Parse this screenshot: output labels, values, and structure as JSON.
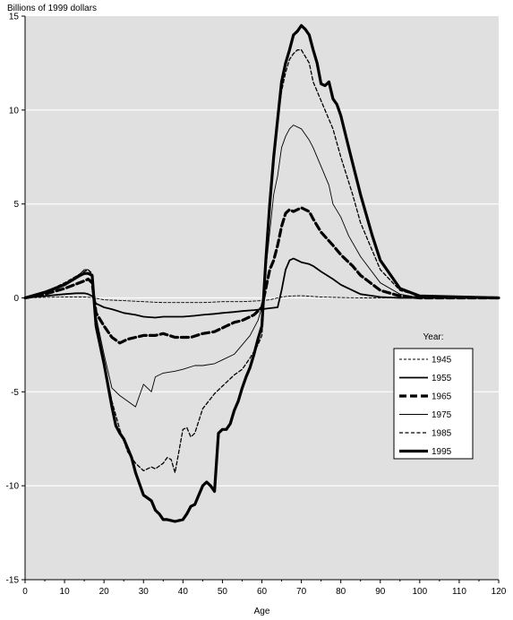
{
  "chart_data": {
    "type": "line",
    "title": "",
    "ylabel": "Billions of 1999 dollars",
    "xlabel": "Age",
    "xlim": [
      0,
      120
    ],
    "ylim": [
      -15,
      15
    ],
    "xticks": [
      0,
      10,
      20,
      30,
      40,
      50,
      60,
      70,
      80,
      90,
      100,
      110,
      120
    ],
    "yticks": [
      -15,
      -10,
      -5,
      0,
      5,
      10,
      15
    ],
    "grid": "horizontal",
    "plot_background": "#e0e0e0",
    "legend": {
      "title": "Year:",
      "placement": "right",
      "entries": [
        "1945",
        "1955",
        "1965",
        "1975",
        "1985",
        "1995"
      ]
    },
    "series": [
      {
        "name": "1945",
        "style": "dashed-thin",
        "x": [
          0,
          5,
          10,
          15,
          17,
          20,
          25,
          30,
          35,
          40,
          45,
          50,
          55,
          60,
          62,
          65,
          67,
          70,
          75,
          80,
          85,
          90,
          95,
          100,
          120
        ],
        "y": [
          0,
          0.03,
          0.05,
          0.05,
          0.02,
          -0.1,
          -0.15,
          -0.2,
          -0.25,
          -0.25,
          -0.25,
          -0.2,
          -0.2,
          -0.15,
          -0.1,
          0.05,
          0.1,
          0.12,
          0.05,
          0.02,
          0,
          0,
          0,
          0,
          0
        ]
      },
      {
        "name": "1955",
        "style": "solid-medium",
        "x": [
          0,
          5,
          10,
          13,
          15,
          16,
          17,
          18,
          20,
          22,
          25,
          28,
          30,
          33,
          35,
          38,
          40,
          43,
          45,
          48,
          50,
          53,
          55,
          58,
          60,
          62,
          64,
          65,
          66,
          67,
          68,
          69,
          70,
          72,
          73,
          75,
          78,
          80,
          85,
          90,
          95,
          100,
          120
        ],
        "y": [
          0,
          0.1,
          0.2,
          0.25,
          0.25,
          0.2,
          0.1,
          -0.3,
          -0.5,
          -0.6,
          -0.8,
          -0.9,
          -1.0,
          -1.05,
          -1.0,
          -1.0,
          -1.0,
          -0.95,
          -0.9,
          -0.85,
          -0.8,
          -0.75,
          -0.7,
          -0.65,
          -0.6,
          -0.55,
          -0.5,
          0.4,
          1.5,
          2.0,
          2.1,
          2.0,
          1.9,
          1.8,
          1.7,
          1.4,
          1.0,
          0.7,
          0.2,
          0.05,
          0,
          0,
          0
        ]
      },
      {
        "name": "1965",
        "style": "dashed-thick",
        "x": [
          0,
          5,
          10,
          15,
          16,
          17,
          18,
          20,
          22,
          24,
          26,
          28,
          30,
          33,
          35,
          38,
          40,
          42,
          45,
          48,
          50,
          53,
          55,
          58,
          60,
          61,
          62,
          63,
          64,
          65,
          66,
          67,
          68,
          70,
          72,
          73,
          75,
          78,
          80,
          83,
          85,
          90,
          95,
          100,
          120
        ],
        "y": [
          0,
          0.2,
          0.5,
          0.9,
          1.0,
          0.8,
          -0.8,
          -1.5,
          -2.1,
          -2.4,
          -2.2,
          -2.1,
          -2.0,
          -2.0,
          -1.9,
          -2.1,
          -2.1,
          -2.1,
          -1.9,
          -1.8,
          -1.6,
          -1.3,
          -1.2,
          -0.9,
          -0.5,
          0.5,
          1.5,
          2.0,
          2.8,
          3.8,
          4.5,
          4.7,
          4.6,
          4.8,
          4.6,
          4.2,
          3.5,
          2.8,
          2.3,
          1.7,
          1.2,
          0.4,
          0.1,
          0,
          0
        ]
      },
      {
        "name": "1975",
        "style": "solid-thin",
        "x": [
          0,
          5,
          10,
          14,
          15,
          16,
          17,
          18,
          20,
          22,
          24,
          26,
          28,
          29,
          30,
          31,
          32,
          33,
          35,
          38,
          40,
          43,
          45,
          48,
          50,
          53,
          55,
          57,
          59,
          60,
          61,
          62,
          63,
          64,
          65,
          66,
          67,
          68,
          70,
          72,
          73,
          75,
          77,
          78,
          80,
          82,
          85,
          90,
          95,
          100,
          120
        ],
        "y": [
          0,
          0.3,
          0.7,
          1.3,
          1.5,
          1.5,
          1.2,
          -1.0,
          -3.0,
          -4.8,
          -5.2,
          -5.5,
          -5.8,
          -5.2,
          -4.6,
          -4.8,
          -5.0,
          -4.2,
          -4.0,
          -3.9,
          -3.8,
          -3.6,
          -3.6,
          -3.5,
          -3.3,
          -3.0,
          -2.5,
          -2.0,
          -1.2,
          -0.5,
          1.5,
          3.5,
          5.5,
          6.5,
          8.0,
          8.6,
          9.0,
          9.2,
          9.0,
          8.4,
          8.0,
          7.0,
          6.0,
          5.0,
          4.3,
          3.3,
          2.2,
          0.8,
          0.2,
          0,
          0
        ]
      },
      {
        "name": "1985",
        "style": "dashed-medium",
        "x": [
          0,
          5,
          10,
          15,
          16,
          17,
          18,
          20,
          22,
          24,
          26,
          28,
          30,
          32,
          33,
          35,
          36,
          37,
          38,
          40,
          41,
          42,
          43,
          45,
          48,
          50,
          53,
          55,
          57,
          59,
          60,
          61,
          62,
          63,
          64,
          65,
          66,
          67,
          68,
          69,
          70,
          72,
          73,
          75,
          78,
          80,
          83,
          85,
          90,
          95,
          100,
          120
        ],
        "y": [
          0,
          0.3,
          0.8,
          1.4,
          1.5,
          1.3,
          -1.0,
          -3.5,
          -5.5,
          -7.0,
          -8.2,
          -8.8,
          -9.2,
          -9.0,
          -9.1,
          -8.8,
          -8.5,
          -8.6,
          -9.3,
          -7.0,
          -6.9,
          -7.4,
          -7.2,
          -5.9,
          -5.1,
          -4.7,
          -4.1,
          -3.8,
          -3.2,
          -2.5,
          -2.0,
          1.5,
          5.0,
          7.5,
          9.5,
          11.0,
          12.0,
          12.7,
          13.0,
          13.2,
          13.2,
          12.5,
          11.5,
          10.5,
          9.0,
          7.5,
          5.5,
          4.0,
          1.5,
          0.4,
          0.1,
          0
        ]
      },
      {
        "name": "1995",
        "style": "solid-thick",
        "x": [
          0,
          5,
          10,
          14,
          15,
          16,
          17,
          18,
          20,
          22,
          23,
          24,
          25,
          26,
          27,
          28,
          30,
          32,
          33,
          34,
          35,
          36,
          38,
          40,
          41,
          42,
          43,
          44,
          45,
          46,
          47,
          48,
          49,
          50,
          51,
          52,
          53,
          54,
          55,
          56,
          57,
          58,
          59,
          60,
          61,
          62,
          63,
          64,
          65,
          66,
          67,
          68,
          69,
          70,
          71,
          72,
          73,
          74,
          75,
          76,
          77,
          78,
          79,
          80,
          82,
          85,
          88,
          90,
          95,
          100,
          120
        ],
        "y": [
          0,
          0.3,
          0.7,
          1.2,
          1.3,
          1.3,
          1.2,
          -1.5,
          -3.5,
          -5.8,
          -6.8,
          -7.2,
          -7.5,
          -8.0,
          -8.5,
          -9.3,
          -10.5,
          -10.8,
          -11.3,
          -11.5,
          -11.8,
          -11.8,
          -11.9,
          -11.8,
          -11.5,
          -11.1,
          -11.0,
          -10.5,
          -10.0,
          -9.8,
          -10.0,
          -10.3,
          -7.2,
          -7.0,
          -7.0,
          -6.7,
          -6.0,
          -5.5,
          -4.8,
          -4.2,
          -3.7,
          -3.0,
          -2.2,
          -1.5,
          2.0,
          5.0,
          7.5,
          9.5,
          11.5,
          12.5,
          13.2,
          14.0,
          14.2,
          14.5,
          14.3,
          14.0,
          13.2,
          12.5,
          11.4,
          11.3,
          11.5,
          10.6,
          10.3,
          9.7,
          8.0,
          5.5,
          3.3,
          2.0,
          0.5,
          0.1,
          0
        ]
      }
    ]
  }
}
